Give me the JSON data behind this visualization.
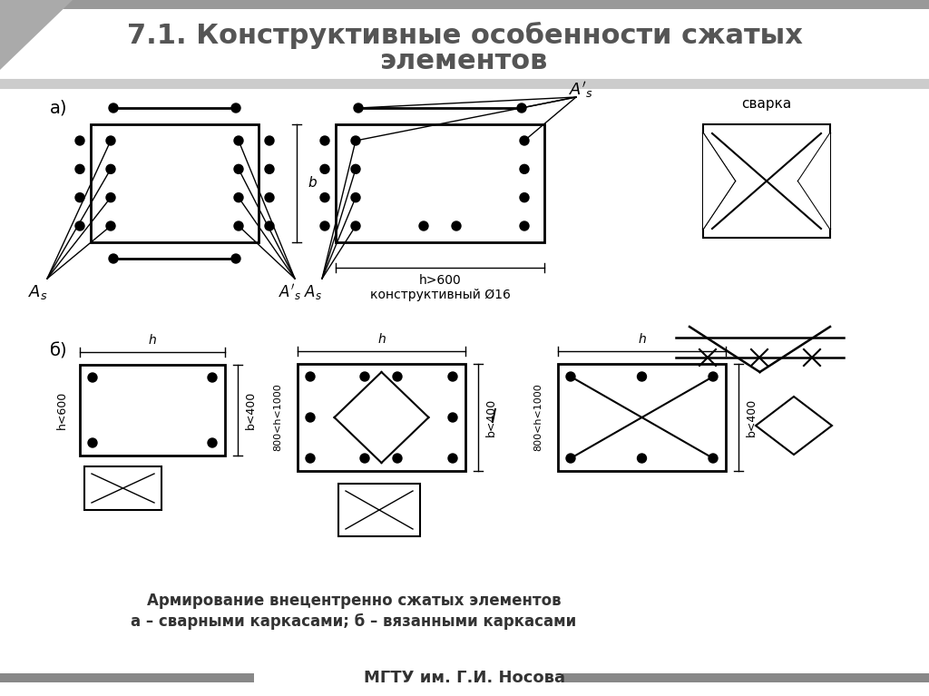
{
  "title_line1": "7.1. Конструктивные особенности сжатых",
  "title_line2": "элементов",
  "title_fontsize": 22,
  "caption1": "Армирование внецентренно сжатых элементов",
  "caption2": "а – сварными каркасами; б – вязанными каркасами",
  "footer": "МГТУ им. Г.И. Носова",
  "bg_color": "#ffffff",
  "line_color": "#000000",
  "gray_color": "#888888",
  "label_a": "а)",
  "label_b": "б)"
}
